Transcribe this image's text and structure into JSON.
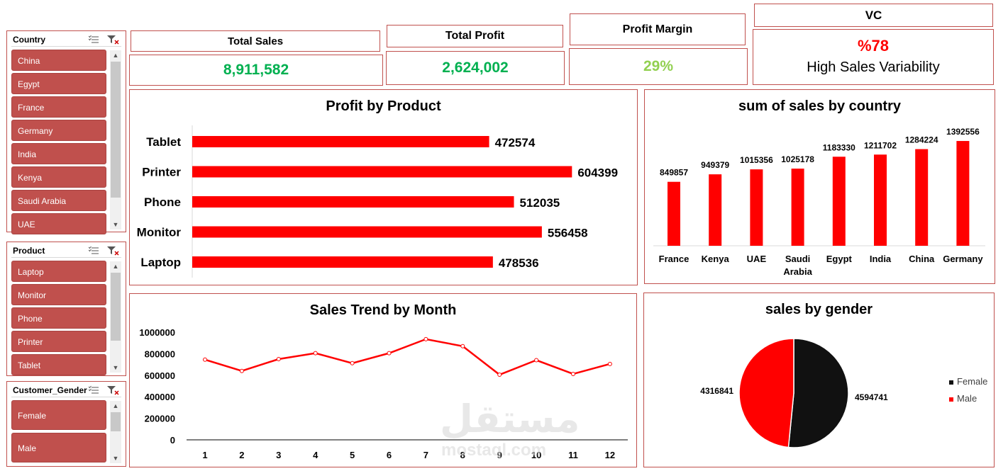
{
  "slicers": {
    "country": {
      "title": "Country",
      "items": [
        "China",
        "Egypt",
        "France",
        "Germany",
        "India",
        "Kenya",
        "Saudi Arabia",
        "UAE"
      ]
    },
    "product": {
      "title": "Product",
      "items": [
        "Laptop",
        "Monitor",
        "Phone",
        "Printer",
        "Tablet"
      ]
    },
    "gender": {
      "title": "Customer_Gender",
      "items": [
        "Female",
        "Male"
      ]
    }
  },
  "kpis": {
    "total_sales": {
      "label": "Total Sales",
      "value": "8,911,582"
    },
    "total_profit": {
      "label": "Total Profit",
      "value": "2,624,002"
    },
    "profit_margin": {
      "label": "Profit Margin",
      "value": "29%"
    },
    "vc": {
      "label": "VC",
      "value": "%78",
      "note": "High Sales Variability"
    }
  },
  "colors": {
    "accent": "#ff0000",
    "border": "#c0504d",
    "slicer": "#c0504d",
    "kpi_green": "#00b050",
    "margin_green": "#92d050",
    "female": "#111111",
    "male": "#ff0000"
  },
  "watermark": {
    "arabic": "مستقل",
    "latin": "mostaql.com"
  },
  "chart_data": [
    {
      "id": "profit_by_product",
      "type": "bar",
      "orientation": "horizontal",
      "title": "Profit by Product",
      "categories": [
        "Tablet",
        "Printer",
        "Phone",
        "Monitor",
        "Laptop"
      ],
      "values": [
        472574,
        604399,
        512035,
        556458,
        478536
      ],
      "xlim": [
        0,
        700000
      ]
    },
    {
      "id": "sales_by_country",
      "type": "bar",
      "title": "sum of sales by country",
      "categories": [
        "France",
        "Kenya",
        "UAE",
        "Saudi Arabia",
        "Egypt",
        "India",
        "China",
        "Germany"
      ],
      "values": [
        849857,
        949379,
        1015356,
        1025178,
        1183330,
        1211702,
        1284224,
        1392556
      ],
      "ylim": [
        0,
        1600000
      ]
    },
    {
      "id": "sales_trend",
      "type": "line",
      "title": "Sales Trend by Month",
      "x": [
        1,
        2,
        3,
        4,
        5,
        6,
        7,
        8,
        9,
        10,
        11,
        12
      ],
      "values": [
        745000,
        640000,
        750000,
        805000,
        712000,
        805000,
        935000,
        870000,
        605000,
        740000,
        612000,
        705000
      ],
      "ylim": [
        0,
        1000000
      ],
      "yticks": [
        "0",
        "200000",
        "400000",
        "600000",
        "800000",
        "1000000"
      ]
    },
    {
      "id": "sales_by_gender",
      "type": "pie",
      "title": "sales by gender",
      "labels": [
        "Female",
        "Male"
      ],
      "values": [
        4594741,
        4316841
      ],
      "value_labels": [
        "4594741",
        "4316841"
      ]
    }
  ]
}
